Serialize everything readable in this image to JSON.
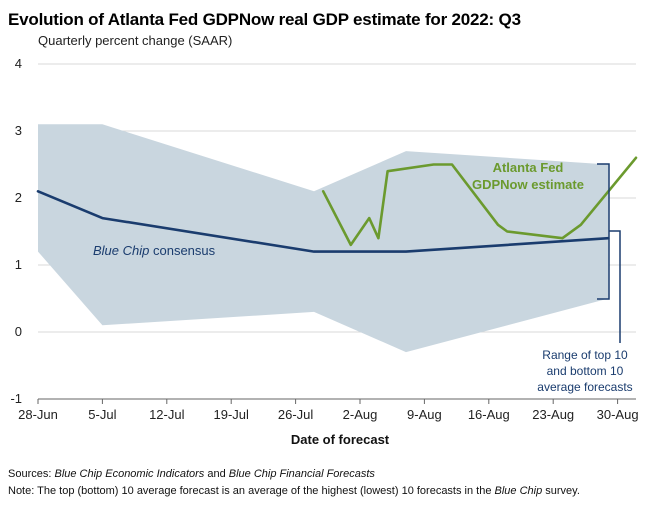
{
  "chart_data": {
    "type": "line",
    "title": "Evolution of Atlanta Fed GDPNow real GDP estimate for 2022: Q3",
    "subtitle": "Quarterly percent change (SAAR)",
    "xlabel": "Date of forecast",
    "ylabel": "",
    "x_tick_labels": [
      "28-Jun",
      "5-Jul",
      "12-Jul",
      "19-Jul",
      "26-Jul",
      "2-Aug",
      "9-Aug",
      "16-Aug",
      "23-Aug",
      "30-Aug"
    ],
    "x_tick_dates": [
      "2022-06-28",
      "2022-07-05",
      "2022-07-12",
      "2022-07-19",
      "2022-07-26",
      "2022-08-02",
      "2022-08-09",
      "2022-08-16",
      "2022-08-23",
      "2022-08-30"
    ],
    "xlim": [
      "2022-06-28",
      "2022-09-01"
    ],
    "y_ticks": [
      -1,
      0,
      1,
      2,
      3,
      4
    ],
    "ylim": [
      -1,
      4
    ],
    "grid": "horizontal",
    "band": {
      "name": "Range of top 10 and bottom 10 average forecasts",
      "color": "#c9d6df",
      "dates": [
        "2022-06-28",
        "2022-07-05",
        "2022-07-28",
        "2022-08-07",
        "2022-08-29"
      ],
      "upper": [
        3.1,
        3.1,
        2.1,
        2.7,
        2.5
      ],
      "lower": [
        1.2,
        0.1,
        0.3,
        -0.3,
        0.5
      ]
    },
    "series": [
      {
        "name": "Blue Chip consensus",
        "color": "#1a3c6e",
        "dates": [
          "2022-06-28",
          "2022-07-05",
          "2022-07-28",
          "2022-08-07",
          "2022-08-29"
        ],
        "values": [
          2.1,
          1.7,
          1.2,
          1.2,
          1.4
        ]
      },
      {
        "name": "Atlanta Fed GDPNow estimate",
        "color": "#6b9a2e",
        "dates": [
          "2022-07-29",
          "2022-08-01",
          "2022-08-03",
          "2022-08-04",
          "2022-08-05",
          "2022-08-10",
          "2022-08-12",
          "2022-08-17",
          "2022-08-18",
          "2022-08-24",
          "2022-08-26",
          "2022-09-01"
        ],
        "values": [
          2.1,
          1.3,
          1.7,
          1.4,
          2.4,
          2.5,
          2.5,
          1.6,
          1.5,
          1.4,
          1.6,
          2.6
        ]
      }
    ],
    "annotations": {
      "gdpnow_line1": "Atlanta Fed",
      "gdpnow_line2": "GDPNow estimate",
      "bluechip_italic": "Blue Chip",
      "bluechip_rest": " consensus",
      "range_line1": "Range of top 10",
      "range_line2": "and bottom 10",
      "range_line3": "average forecasts"
    }
  },
  "footer": {
    "sources_label": "Sources:",
    "sources_title1": "Blue Chip Economic Indicators",
    "sources_and": " and ",
    "sources_title2": "Blue Chip Financial Forecasts",
    "note_label": "Note:",
    "note_text1": " The top (bottom) 10 average forecast is an average of the highest (lowest) 10 forecasts in the ",
    "note_italic": "Blue Chip",
    "note_text2": " survey."
  }
}
